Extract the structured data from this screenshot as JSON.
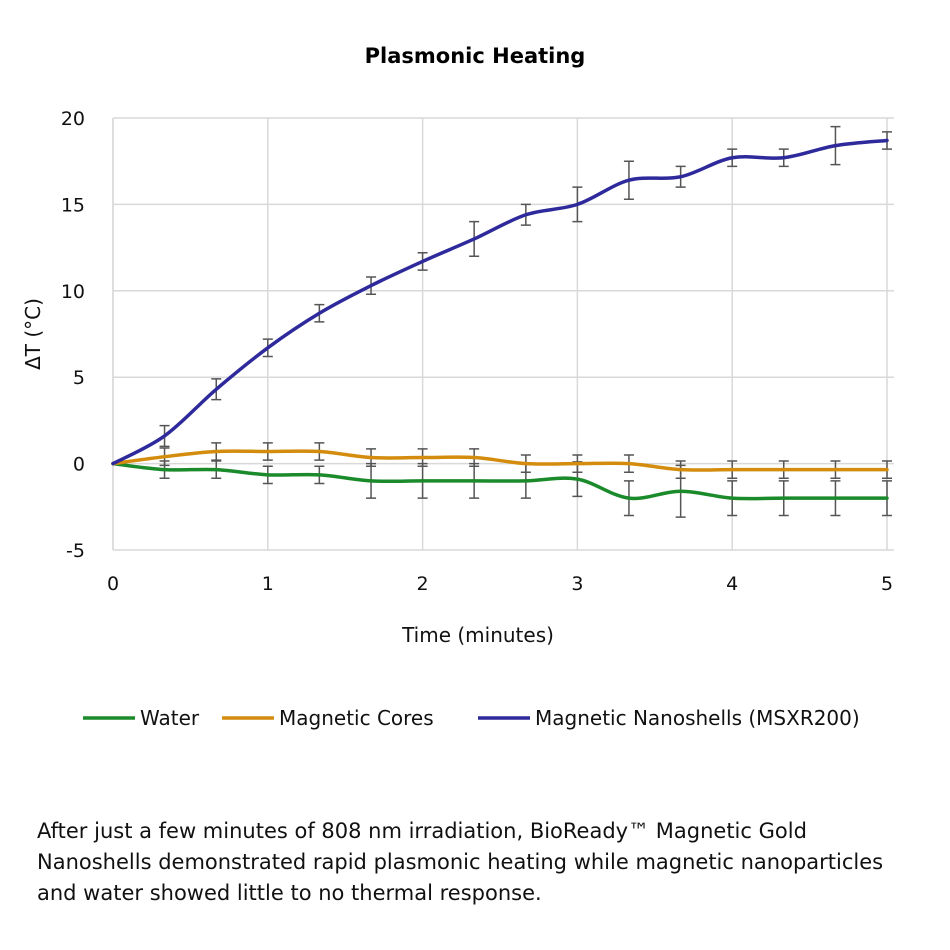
{
  "chart_data": {
    "type": "line",
    "title": "Plasmonic Heating",
    "xlabel": "Time (minutes)",
    "ylabel": "ΔT (°C)",
    "xlim": [
      0,
      5
    ],
    "ylim": [
      -5,
      20
    ],
    "xticks": [
      0,
      1,
      2,
      3,
      4,
      5
    ],
    "yticks": [
      -5,
      0,
      5,
      10,
      15,
      20
    ],
    "grid": true,
    "legend_position": "bottom",
    "x": [
      0,
      0.333,
      0.667,
      1,
      1.333,
      1.667,
      2,
      2.333,
      2.667,
      3,
      3.333,
      3.667,
      4,
      4.333,
      4.667,
      5
    ],
    "series": [
      {
        "name": "Water",
        "color": "#1a8a2a",
        "values": [
          0,
          -0.35,
          -0.35,
          -0.65,
          -0.65,
          -1.0,
          -1.0,
          -1.0,
          -1.0,
          -0.9,
          -2.0,
          -1.6,
          -2.0,
          -2.0,
          -2.0,
          -2.0
        ],
        "errors": [
          0,
          0.5,
          0.5,
          0.5,
          0.5,
          1.0,
          1.0,
          1.0,
          1.0,
          1.0,
          1.0,
          1.5,
          1.0,
          1.0,
          1.0,
          1.0
        ]
      },
      {
        "name": "Magnetic Cores",
        "color": "#d48c0e",
        "values": [
          0,
          0.4,
          0.7,
          0.7,
          0.7,
          0.35,
          0.35,
          0.35,
          0,
          0,
          0,
          -0.35,
          -0.35,
          -0.35,
          -0.35,
          -0.35
        ],
        "errors": [
          0,
          0.5,
          0.5,
          0.5,
          0.5,
          0.5,
          0.5,
          0.5,
          0.5,
          0.5,
          0.5,
          0.5,
          0.5,
          0.5,
          0.5,
          0.5
        ]
      },
      {
        "name": "Magnetic Nanoshells (MSXR200)",
        "color": "#2e2a9c",
        "values": [
          0,
          1.6,
          4.3,
          6.7,
          8.7,
          10.3,
          11.7,
          13.0,
          14.4,
          15.0,
          16.4,
          16.6,
          17.7,
          17.7,
          18.4,
          18.7
        ],
        "errors": [
          0,
          0.6,
          0.6,
          0.5,
          0.5,
          0.5,
          0.5,
          1.0,
          0.6,
          1.0,
          1.1,
          0.6,
          0.5,
          0.5,
          1.1,
          0.5
        ]
      }
    ]
  },
  "caption": "After just a few minutes of 808 nm irradiation, BioReady™ Magnetic Gold Nanoshells demonstrated rapid plasmonic heating while magnetic nanoparticles and water showed little to no thermal response."
}
